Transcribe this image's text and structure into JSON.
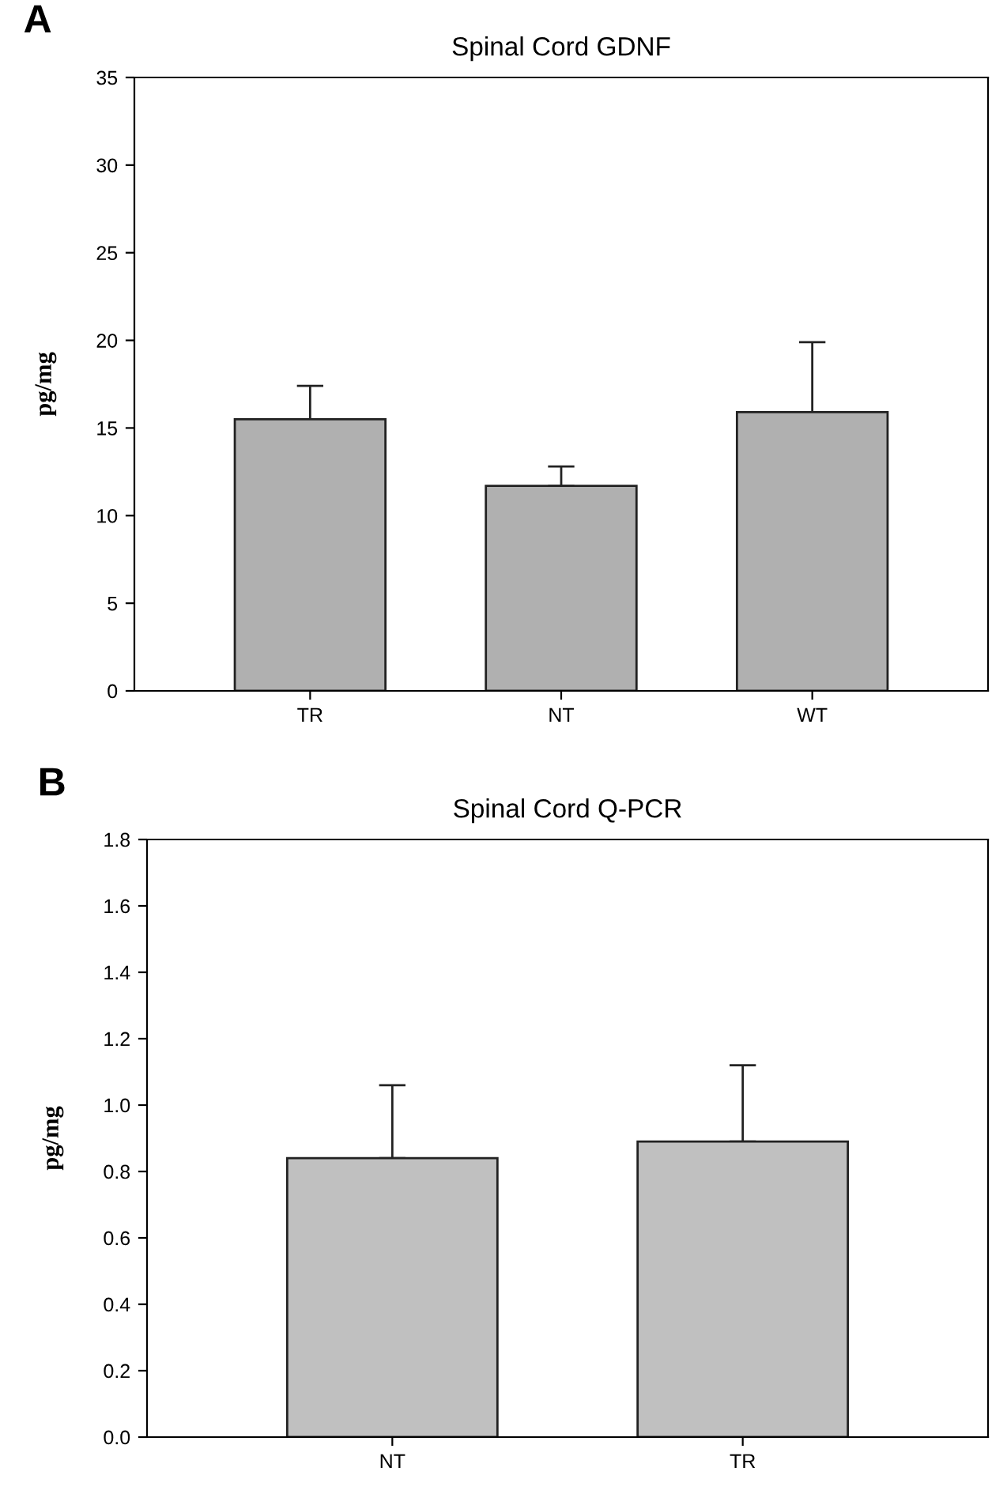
{
  "chart_data": [
    {
      "type": "bar",
      "title": "Spinal Cord GDNF",
      "ylabel": "pg/mg",
      "annotations": [
        "A"
      ],
      "categories": [
        "TR",
        "NT",
        "WT"
      ],
      "values": [
        15.5,
        11.7,
        15.9
      ],
      "errors": [
        [
          15.5,
          17.4
        ],
        [
          11.7,
          12.8
        ],
        [
          15.9,
          19.9
        ]
      ],
      "color": "#b0b0b0",
      "ylim": [
        0,
        35
      ],
      "yticks": [
        0,
        5,
        10,
        15,
        20,
        25,
        30,
        35
      ],
      "grid": false,
      "legend": false
    },
    {
      "type": "bar",
      "title": "Spinal Cord Q-PCR",
      "ylabel": "pg/mg",
      "annotations": [
        "B"
      ],
      "categories": [
        "NT",
        "TR"
      ],
      "values": [
        0.84,
        0.89
      ],
      "errors": [
        [
          0.84,
          1.06
        ],
        [
          0.89,
          1.12
        ]
      ],
      "color": "#c0c0c0",
      "ylim": [
        0,
        1.8
      ],
      "yticks": [
        {
          "value": 0,
          "label": "0.0"
        },
        0.2,
        0.4,
        0.6,
        0.8,
        {
          "value": 1,
          "label": "1.0"
        },
        1.2,
        1.4,
        1.6,
        1.8
      ],
      "grid": false,
      "legend": false
    }
  ]
}
